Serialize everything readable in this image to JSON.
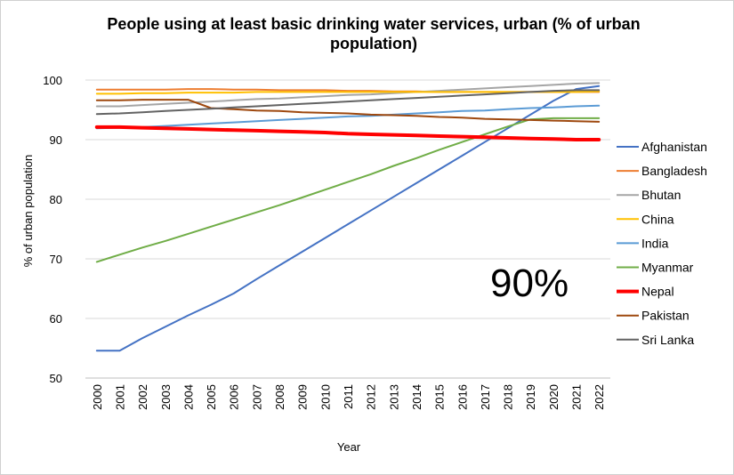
{
  "chart_data": {
    "type": "line",
    "title": "People using at least basic drinking water services, urban (% of urban population)",
    "xlabel": "Year",
    "ylabel": "% of urban population",
    "ylim": [
      50,
      100
    ],
    "yticks": [
      50,
      60,
      70,
      80,
      90,
      100
    ],
    "grid": "horizontal",
    "legend": "right",
    "annotation": "90%",
    "x": [
      "2000",
      "2001",
      "2002",
      "2003",
      "2004",
      "2005",
      "2006",
      "2007",
      "2008",
      "2009",
      "2010",
      "2011",
      "2012",
      "2013",
      "2014",
      "2015",
      "2016",
      "2017",
      "2018",
      "2019",
      "2020",
      "2021",
      "2022"
    ],
    "series": [
      {
        "name": "Afghanistan",
        "color": "#4472C4",
        "width": 2,
        "values": [
          54.6,
          54.6,
          56.7,
          58.6,
          60.5,
          62.3,
          64.2,
          66.6,
          68.9,
          71.2,
          73.5,
          75.8,
          78.1,
          80.4,
          82.7,
          85.0,
          87.3,
          89.6,
          91.9,
          94.2,
          96.5,
          98.5,
          99.0
        ]
      },
      {
        "name": "Bangladesh",
        "color": "#ED7D31",
        "width": 2,
        "values": [
          98.4,
          98.4,
          98.4,
          98.4,
          98.5,
          98.5,
          98.4,
          98.4,
          98.3,
          98.3,
          98.3,
          98.2,
          98.2,
          98.1,
          98.1,
          98.0,
          98.0,
          98.0,
          98.0,
          98.0,
          98.0,
          98.0,
          98.0
        ]
      },
      {
        "name": "Bhutan",
        "color": "#A5A5A5",
        "width": 2,
        "values": [
          95.6,
          95.6,
          95.8,
          96.0,
          96.2,
          96.4,
          96.6,
          96.8,
          96.9,
          97.1,
          97.3,
          97.5,
          97.6,
          97.8,
          98.0,
          98.2,
          98.4,
          98.6,
          98.8,
          99.0,
          99.2,
          99.4,
          99.5
        ]
      },
      {
        "name": "China",
        "color": "#FFC000",
        "width": 2,
        "values": [
          97.7,
          97.7,
          97.8,
          97.8,
          97.9,
          97.9,
          97.9,
          98.0,
          98.0,
          98.0,
          98.0,
          98.0,
          98.0,
          98.0,
          98.0,
          98.0,
          98.0,
          98.0,
          98.0,
          98.0,
          98.0,
          98.0,
          98.1
        ]
      },
      {
        "name": "India",
        "color": "#5B9BD5",
        "width": 2,
        "values": [
          91.9,
          92.0,
          92.1,
          92.3,
          92.5,
          92.7,
          92.9,
          93.1,
          93.3,
          93.5,
          93.7,
          93.9,
          94.0,
          94.2,
          94.4,
          94.6,
          94.8,
          94.9,
          95.1,
          95.3,
          95.4,
          95.6,
          95.7
        ]
      },
      {
        "name": "Myanmar",
        "color": "#70AD47",
        "width": 2,
        "values": [
          69.5,
          70.7,
          71.9,
          73.0,
          74.2,
          75.4,
          76.6,
          77.8,
          79.0,
          80.3,
          81.6,
          82.9,
          84.2,
          85.6,
          86.9,
          88.3,
          89.6,
          90.9,
          92.2,
          93.4,
          93.6,
          93.6,
          93.6
        ]
      },
      {
        "name": "Nepal",
        "color": "#FF0000",
        "width": 4,
        "values": [
          92.1,
          92.1,
          92.0,
          91.9,
          91.8,
          91.7,
          91.6,
          91.5,
          91.4,
          91.3,
          91.2,
          91.0,
          90.9,
          90.8,
          90.7,
          90.6,
          90.5,
          90.4,
          90.3,
          90.2,
          90.1,
          90.0,
          90.0
        ]
      },
      {
        "name": "Pakistan",
        "color": "#9E480E",
        "width": 2,
        "values": [
          96.6,
          96.6,
          96.7,
          96.7,
          96.7,
          95.3,
          95.1,
          94.9,
          94.8,
          94.6,
          94.5,
          94.4,
          94.2,
          94.1,
          94.0,
          93.8,
          93.7,
          93.5,
          93.4,
          93.3,
          93.2,
          93.1,
          93.0
        ]
      },
      {
        "name": "Sri Lanka",
        "color": "#636363",
        "width": 2,
        "values": [
          94.3,
          94.4,
          94.6,
          94.8,
          95.0,
          95.2,
          95.4,
          95.6,
          95.8,
          96.0,
          96.2,
          96.4,
          96.6,
          96.8,
          97.0,
          97.2,
          97.4,
          97.6,
          97.8,
          98.0,
          98.2,
          98.3,
          98.3
        ]
      }
    ]
  }
}
